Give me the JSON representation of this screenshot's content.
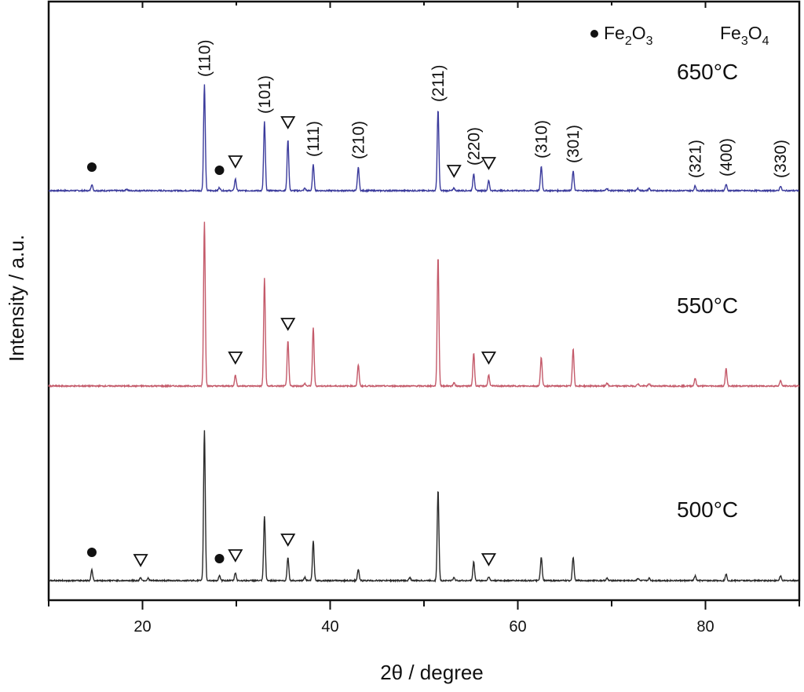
{
  "chart_data": {
    "type": "line",
    "title": "",
    "xlabel": "2θ / degree",
    "ylabel": "Intensity / a.u.",
    "xlim": [
      10,
      90
    ],
    "xticks": [
      20,
      40,
      60,
      80
    ],
    "minor_xticks": [
      10,
      30,
      50,
      70,
      90
    ],
    "grid": false,
    "legend": {
      "placement": "top-right",
      "entries": [
        {
          "symbol": "filled-circle",
          "label_main": "Fe",
          "sub1": "2",
          "mid": "O",
          "sub2": "3"
        },
        {
          "symbol": "open-triangle-down",
          "label_main": "Fe",
          "sub1": "3",
          "mid": "O",
          "sub2": "4"
        }
      ]
    },
    "series": [
      {
        "name": "650°C",
        "color": "#3b3b9c",
        "peaks": [
          [
            14.6,
            8
          ],
          [
            18.3,
            2
          ],
          [
            26.6,
            135
          ],
          [
            28.2,
            4
          ],
          [
            29.9,
            15
          ],
          [
            33.0,
            88
          ],
          [
            35.5,
            65
          ],
          [
            37.3,
            3
          ],
          [
            38.2,
            33
          ],
          [
            43.0,
            30
          ],
          [
            51.5,
            103
          ],
          [
            53.2,
            3
          ],
          [
            55.3,
            22
          ],
          [
            56.9,
            13
          ],
          [
            62.5,
            31
          ],
          [
            65.9,
            25
          ],
          [
            69.5,
            3
          ],
          [
            72.8,
            3
          ],
          [
            74.0,
            3
          ],
          [
            78.9,
            6
          ],
          [
            82.2,
            8
          ],
          [
            88.0,
            6
          ]
        ],
        "markers": [
          {
            "symbol": "filled-circle",
            "x": 14.6
          },
          {
            "symbol": "filled-circle",
            "x": 28.2
          },
          {
            "symbol": "open-triangle-down",
            "x": 29.9
          },
          {
            "symbol": "open-triangle-down",
            "x": 35.5
          },
          {
            "symbol": "open-triangle-down",
            "x": 53.2
          },
          {
            "symbol": "open-triangle-down",
            "x": 56.9
          }
        ],
        "hkl": [
          {
            "label": "(110)",
            "x": 26.6
          },
          {
            "label": "(101)",
            "x": 33.0
          },
          {
            "label": "(111)",
            "x": 38.2
          },
          {
            "label": "(210)",
            "x": 43.0
          },
          {
            "label": "(211)",
            "x": 51.5
          },
          {
            "label": "(220)",
            "x": 55.3
          },
          {
            "label": "(310)",
            "x": 62.5
          },
          {
            "label": "(301)",
            "x": 65.9
          },
          {
            "label": "(321)",
            "x": 78.9
          },
          {
            "label": "(400)",
            "x": 82.2
          },
          {
            "label": "(330)",
            "x": 88.0
          }
        ]
      },
      {
        "name": "550°C",
        "color": "#c45a6a",
        "peaks": [
          [
            26.6,
            209
          ],
          [
            29.9,
            14
          ],
          [
            33.0,
            137
          ],
          [
            35.5,
            57
          ],
          [
            37.3,
            3
          ],
          [
            38.2,
            74
          ],
          [
            43.0,
            27
          ],
          [
            51.5,
            165
          ],
          [
            53.2,
            4
          ],
          [
            55.3,
            42
          ],
          [
            56.9,
            14
          ],
          [
            62.5,
            37
          ],
          [
            65.9,
            47
          ],
          [
            69.5,
            4
          ],
          [
            72.8,
            3
          ],
          [
            74.0,
            3
          ],
          [
            78.9,
            10
          ],
          [
            82.2,
            22
          ],
          [
            88.0,
            7
          ]
        ],
        "markers": [
          {
            "symbol": "open-triangle-down",
            "x": 29.9
          },
          {
            "symbol": "open-triangle-down",
            "x": 35.5
          },
          {
            "symbol": "open-triangle-down",
            "x": 56.9
          }
        ],
        "hkl": []
      },
      {
        "name": "500°C",
        "color": "#2a2a2a",
        "peaks": [
          [
            14.6,
            14
          ],
          [
            19.8,
            4
          ],
          [
            20.6,
            3
          ],
          [
            26.6,
            192
          ],
          [
            28.2,
            6
          ],
          [
            29.9,
            10
          ],
          [
            33.0,
            82
          ],
          [
            35.5,
            30
          ],
          [
            37.3,
            4
          ],
          [
            38.2,
            50
          ],
          [
            43.0,
            14
          ],
          [
            48.5,
            4
          ],
          [
            51.5,
            115
          ],
          [
            53.2,
            4
          ],
          [
            55.3,
            24
          ],
          [
            56.9,
            5
          ],
          [
            62.5,
            30
          ],
          [
            65.9,
            30
          ],
          [
            69.5,
            3
          ],
          [
            72.8,
            3
          ],
          [
            74.0,
            3
          ],
          [
            78.9,
            6
          ],
          [
            82.2,
            8
          ],
          [
            88.0,
            6
          ]
        ],
        "markers": [
          {
            "symbol": "filled-circle",
            "x": 14.6
          },
          {
            "symbol": "open-triangle-down",
            "x": 19.8
          },
          {
            "symbol": "filled-circle",
            "x": 28.2
          },
          {
            "symbol": "open-triangle-down",
            "x": 29.9
          },
          {
            "symbol": "open-triangle-down",
            "x": 35.5
          },
          {
            "symbol": "open-triangle-down",
            "x": 56.9
          }
        ],
        "hkl": []
      }
    ]
  }
}
